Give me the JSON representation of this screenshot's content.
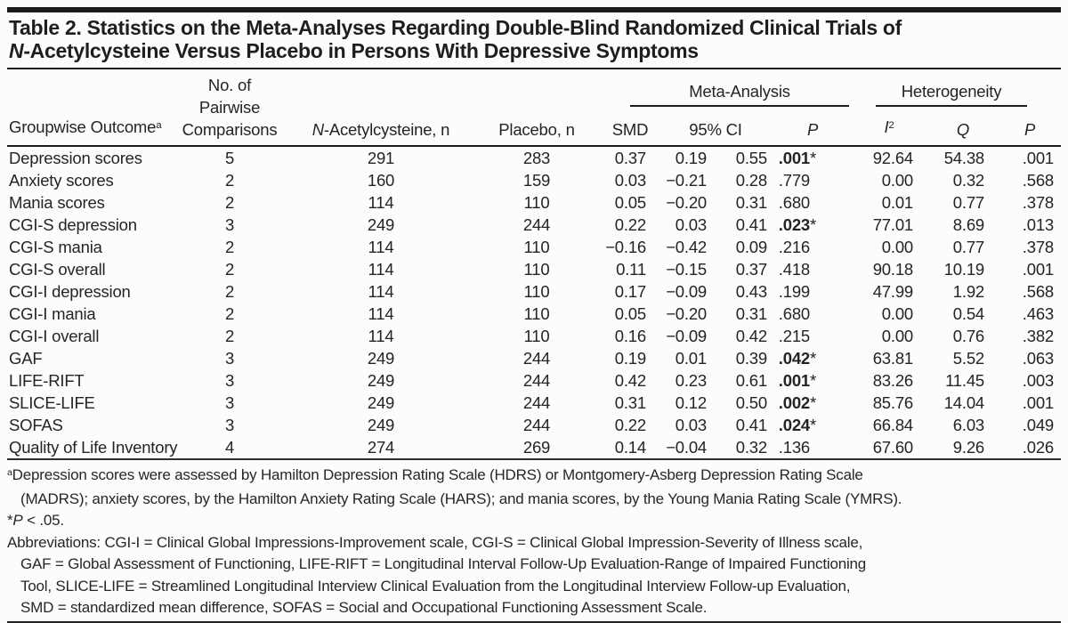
{
  "colors": {
    "text": "#242424",
    "rule": "#1b1b1b",
    "background": "#fcfcfc"
  },
  "title": {
    "line1": "Table 2. Statistics on the Meta-Analyses Regarding Double-Blind Randomized Clinical Trials of",
    "line2_italic": "N",
    "line2_rest": "-Acetylcysteine Versus Placebo in Persons With Depressive Symptoms"
  },
  "header": {
    "outcome": "Groupwise Outcome",
    "outcome_sup": "a",
    "comparisons_l1": "No. of",
    "comparisons_l2": "Pairwise",
    "comparisons_l3": "Comparisons",
    "nac_italic": "N",
    "nac_rest": "-Acetylcysteine, n",
    "placebo": "Placebo, n",
    "meta_group": "Meta-Analysis",
    "het_group": "Heterogeneity",
    "smd": "SMD",
    "ci": "95% CI",
    "p_meta": "P",
    "i_italic": "I",
    "i_sup": "2",
    "q": "Q",
    "p_het": "P"
  },
  "table": {
    "rows": [
      {
        "outcome": "Depression scores",
        "comparisons": "5",
        "nac_n": "291",
        "placebo_n": "283",
        "smd": "0.37",
        "ci_low": "0.19",
        "ci_high": "0.55",
        "p": ".001",
        "ast": "*",
        "sig": true,
        "i2": "92.64",
        "q": "54.38",
        "p_het": ".001"
      },
      {
        "outcome": "Anxiety scores",
        "comparisons": "2",
        "nac_n": "160",
        "placebo_n": "159",
        "smd": "0.03",
        "ci_low": "−0.21",
        "ci_high": "0.28",
        "p": ".779",
        "ast": "",
        "sig": false,
        "i2": "0.00",
        "q": "0.32",
        "p_het": ".568"
      },
      {
        "outcome": "Mania scores",
        "comparisons": "2",
        "nac_n": "114",
        "placebo_n": "110",
        "smd": "0.05",
        "ci_low": "−0.20",
        "ci_high": "0.31",
        "p": ".680",
        "ast": "",
        "sig": false,
        "i2": "0.01",
        "q": "0.77",
        "p_het": ".378"
      },
      {
        "outcome": "CGI-S depression",
        "comparisons": "3",
        "nac_n": "249",
        "placebo_n": "244",
        "smd": "0.22",
        "ci_low": "0.03",
        "ci_high": "0.41",
        "p": ".023",
        "ast": "*",
        "sig": true,
        "i2": "77.01",
        "q": "8.69",
        "p_het": ".013"
      },
      {
        "outcome": "CGI-S mania",
        "comparisons": "2",
        "nac_n": "114",
        "placebo_n": "110",
        "smd": "−0.16",
        "ci_low": "−0.42",
        "ci_high": "0.09",
        "p": ".216",
        "ast": "",
        "sig": false,
        "i2": "0.00",
        "q": "0.77",
        "p_het": ".378"
      },
      {
        "outcome": "CGI-S overall",
        "comparisons": "2",
        "nac_n": "114",
        "placebo_n": "110",
        "smd": "0.11",
        "ci_low": "−0.15",
        "ci_high": "0.37",
        "p": ".418",
        "ast": "",
        "sig": false,
        "i2": "90.18",
        "q": "10.19",
        "p_het": ".001"
      },
      {
        "outcome": "CGI-I depression",
        "comparisons": "2",
        "nac_n": "114",
        "placebo_n": "110",
        "smd": "0.17",
        "ci_low": "−0.09",
        "ci_high": "0.43",
        "p": ".199",
        "ast": "",
        "sig": false,
        "i2": "47.99",
        "q": "1.92",
        "p_het": ".568"
      },
      {
        "outcome": "CGI-I mania",
        "comparisons": "2",
        "nac_n": "114",
        "placebo_n": "110",
        "smd": "0.05",
        "ci_low": "−0.20",
        "ci_high": "0.31",
        "p": ".680",
        "ast": "",
        "sig": false,
        "i2": "0.00",
        "q": "0.54",
        "p_het": ".463"
      },
      {
        "outcome": "CGI-I overall",
        "comparisons": "2",
        "nac_n": "114",
        "placebo_n": "110",
        "smd": "0.16",
        "ci_low": "−0.09",
        "ci_high": "0.42",
        "p": ".215",
        "ast": "",
        "sig": false,
        "i2": "0.00",
        "q": "0.76",
        "p_het": ".382"
      },
      {
        "outcome": "GAF",
        "comparisons": "3",
        "nac_n": "249",
        "placebo_n": "244",
        "smd": "0.19",
        "ci_low": "0.01",
        "ci_high": "0.39",
        "p": ".042",
        "ast": "*",
        "sig": true,
        "i2": "63.81",
        "q": "5.52",
        "p_het": ".063"
      },
      {
        "outcome": "LIFE-RIFT",
        "comparisons": "3",
        "nac_n": "249",
        "placebo_n": "244",
        "smd": "0.42",
        "ci_low": "0.23",
        "ci_high": "0.61",
        "p": ".001",
        "ast": "*",
        "sig": true,
        "i2": "83.26",
        "q": "11.45",
        "p_het": ".003"
      },
      {
        "outcome": "SLICE-LIFE",
        "comparisons": "3",
        "nac_n": "249",
        "placebo_n": "244",
        "smd": "0.31",
        "ci_low": "0.12",
        "ci_high": "0.50",
        "p": ".002",
        "ast": "*",
        "sig": true,
        "i2": "85.76",
        "q": "14.04",
        "p_het": ".001"
      },
      {
        "outcome": "SOFAS",
        "comparisons": "3",
        "nac_n": "249",
        "placebo_n": "244",
        "smd": "0.22",
        "ci_low": "0.03",
        "ci_high": "0.41",
        "p": ".024",
        "ast": "*",
        "sig": true,
        "i2": "66.84",
        "q": "6.03",
        "p_het": ".049"
      },
      {
        "outcome": "Quality of Life Inventory",
        "comparisons": "4",
        "nac_n": "274",
        "placebo_n": "269",
        "smd": "0.14",
        "ci_low": "−0.04",
        "ci_high": "0.32",
        "p": ".136",
        "ast": "",
        "sig": false,
        "i2": "67.60",
        "q": "9.26",
        "p_het": ".026"
      }
    ]
  },
  "footnotes": {
    "a_sup": "a",
    "a_text": "Depression scores were assessed by Hamilton Depression Rating Scale (HDRS) or Montgomery-Asberg Depression Rating Scale\n(MADRS); anxiety scores, by the Hamilton Anxiety Rating Scale (HARS); and mania scores, by the Young Mania Rating Scale (YMRS).",
    "sig_star": "*",
    "sig_p": "P",
    "sig_rest": " < .05.",
    "abbr_text": "Abbreviations: CGI-I = Clinical Global Impressions-Improvement scale, CGI-S = Clinical Global Impression-Severity of Illness scale,\nGAF = Global Assessment of Functioning, LIFE-RIFT = Longitudinal Interval Follow-Up Evaluation-Range of Impaired Functioning\nTool, SLICE-LIFE = Streamlined Longitudinal Interview Clinical Evaluation from the Longitudinal Interview Follow-up Evaluation,\nSMD = standardized mean difference, SOFAS = Social and Occupational Functioning Assessment Scale."
  }
}
